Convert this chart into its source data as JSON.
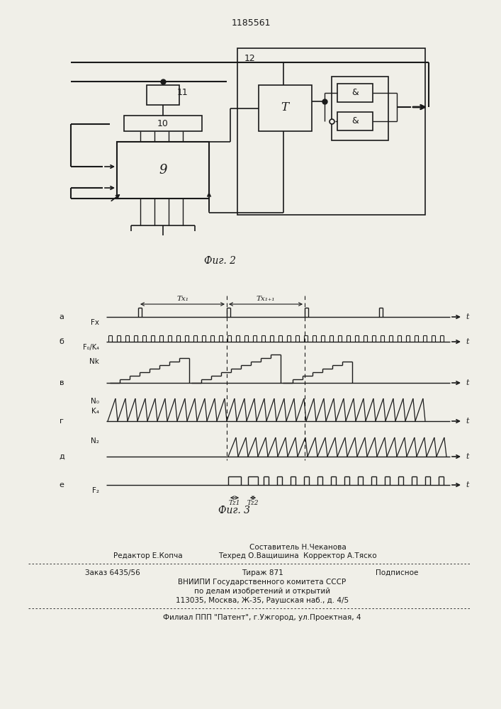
{
  "patent_number": "1185561",
  "background": "#f0efe8",
  "line_color": "#1a1a1a",
  "footer_line1_left": "Редактор Е.Копча",
  "footer_line1_right": "Составитель Н.Чеканова",
  "footer_line2_right": "Техред О.Ващишина  Корректор А.Тяско",
  "footer_order": "Заказ 6435/56",
  "footer_tirazh": "Тираж 871",
  "footer_podp": "Подписное",
  "footer_vniip": "ВНИИПИ Государственного комитета СССР",
  "footer_dela": "по делам изобретений и открытий",
  "footer_addr": "113035, Москва, Ж-35, Раушская наб., д. 4/5",
  "footer_filial": "Филиал ППП \"Патент\", г.Ужгород, ул.Проектная, 4"
}
